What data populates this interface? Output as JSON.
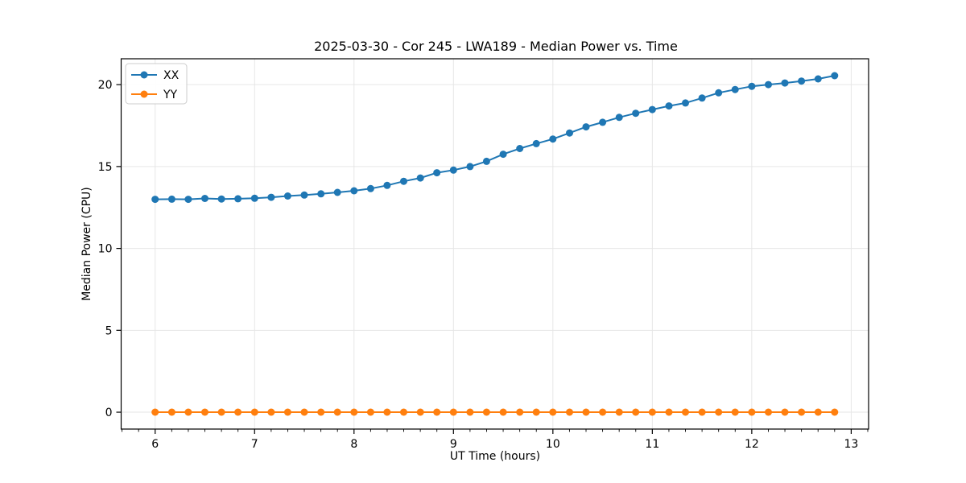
{
  "chart_data": {
    "type": "line",
    "title": "2025-03-30 - Cor 245 - LWA189 - Median Power vs. Time",
    "xlabel": "UT Time (hours)",
    "ylabel": "Median Power (CPU)",
    "xlim": [
      5.658,
      13.175
    ],
    "ylim": [
      -1.03,
      21.58
    ],
    "xticks": [
      6,
      7,
      8,
      9,
      10,
      11,
      12,
      13
    ],
    "yticks": [
      0,
      5,
      10,
      15,
      20
    ],
    "minor_xtick_step": 0.1667,
    "grid": true,
    "legend_position": "upper-left",
    "background": "#ffffff",
    "grid_color": "#e6e6e6",
    "spine_color": "#000000",
    "x": [
      6.0,
      6.167,
      6.333,
      6.5,
      6.667,
      6.833,
      7.0,
      7.167,
      7.333,
      7.5,
      7.667,
      7.833,
      8.0,
      8.167,
      8.333,
      8.5,
      8.667,
      8.833,
      9.0,
      9.167,
      9.333,
      9.5,
      9.667,
      9.833,
      10.0,
      10.167,
      10.333,
      10.5,
      10.667,
      10.833,
      11.0,
      11.167,
      11.333,
      11.5,
      11.667,
      11.833,
      12.0,
      12.167,
      12.333,
      12.5,
      12.667,
      12.833
    ],
    "series": [
      {
        "name": "XX",
        "color": "#1f77b4",
        "values": [
          13.0,
          13.01,
          13.0,
          13.05,
          13.02,
          13.03,
          13.06,
          13.12,
          13.2,
          13.26,
          13.33,
          13.42,
          13.52,
          13.65,
          13.85,
          14.1,
          14.3,
          14.62,
          14.78,
          15.0,
          15.32,
          15.75,
          16.1,
          16.4,
          16.68,
          17.05,
          17.42,
          17.7,
          18.0,
          18.25,
          18.48,
          18.7,
          18.88,
          19.18,
          19.5,
          19.7,
          19.9,
          20.0,
          20.1,
          20.22,
          20.35,
          20.55
        ]
      },
      {
        "name": "YY",
        "color": "#ff7f0e",
        "values": [
          0.0,
          0.0,
          0.0,
          0.0,
          0.0,
          0.0,
          0.0,
          0.0,
          0.0,
          0.0,
          0.0,
          0.0,
          0.0,
          0.0,
          0.0,
          0.0,
          0.0,
          0.0,
          0.0,
          0.0,
          0.0,
          0.0,
          0.0,
          0.0,
          0.0,
          0.0,
          0.0,
          0.0,
          0.0,
          0.0,
          0.0,
          0.0,
          0.0,
          0.0,
          0.0,
          0.0,
          0.0,
          0.0,
          0.0,
          0.0,
          0.0,
          0.0
        ]
      }
    ]
  }
}
